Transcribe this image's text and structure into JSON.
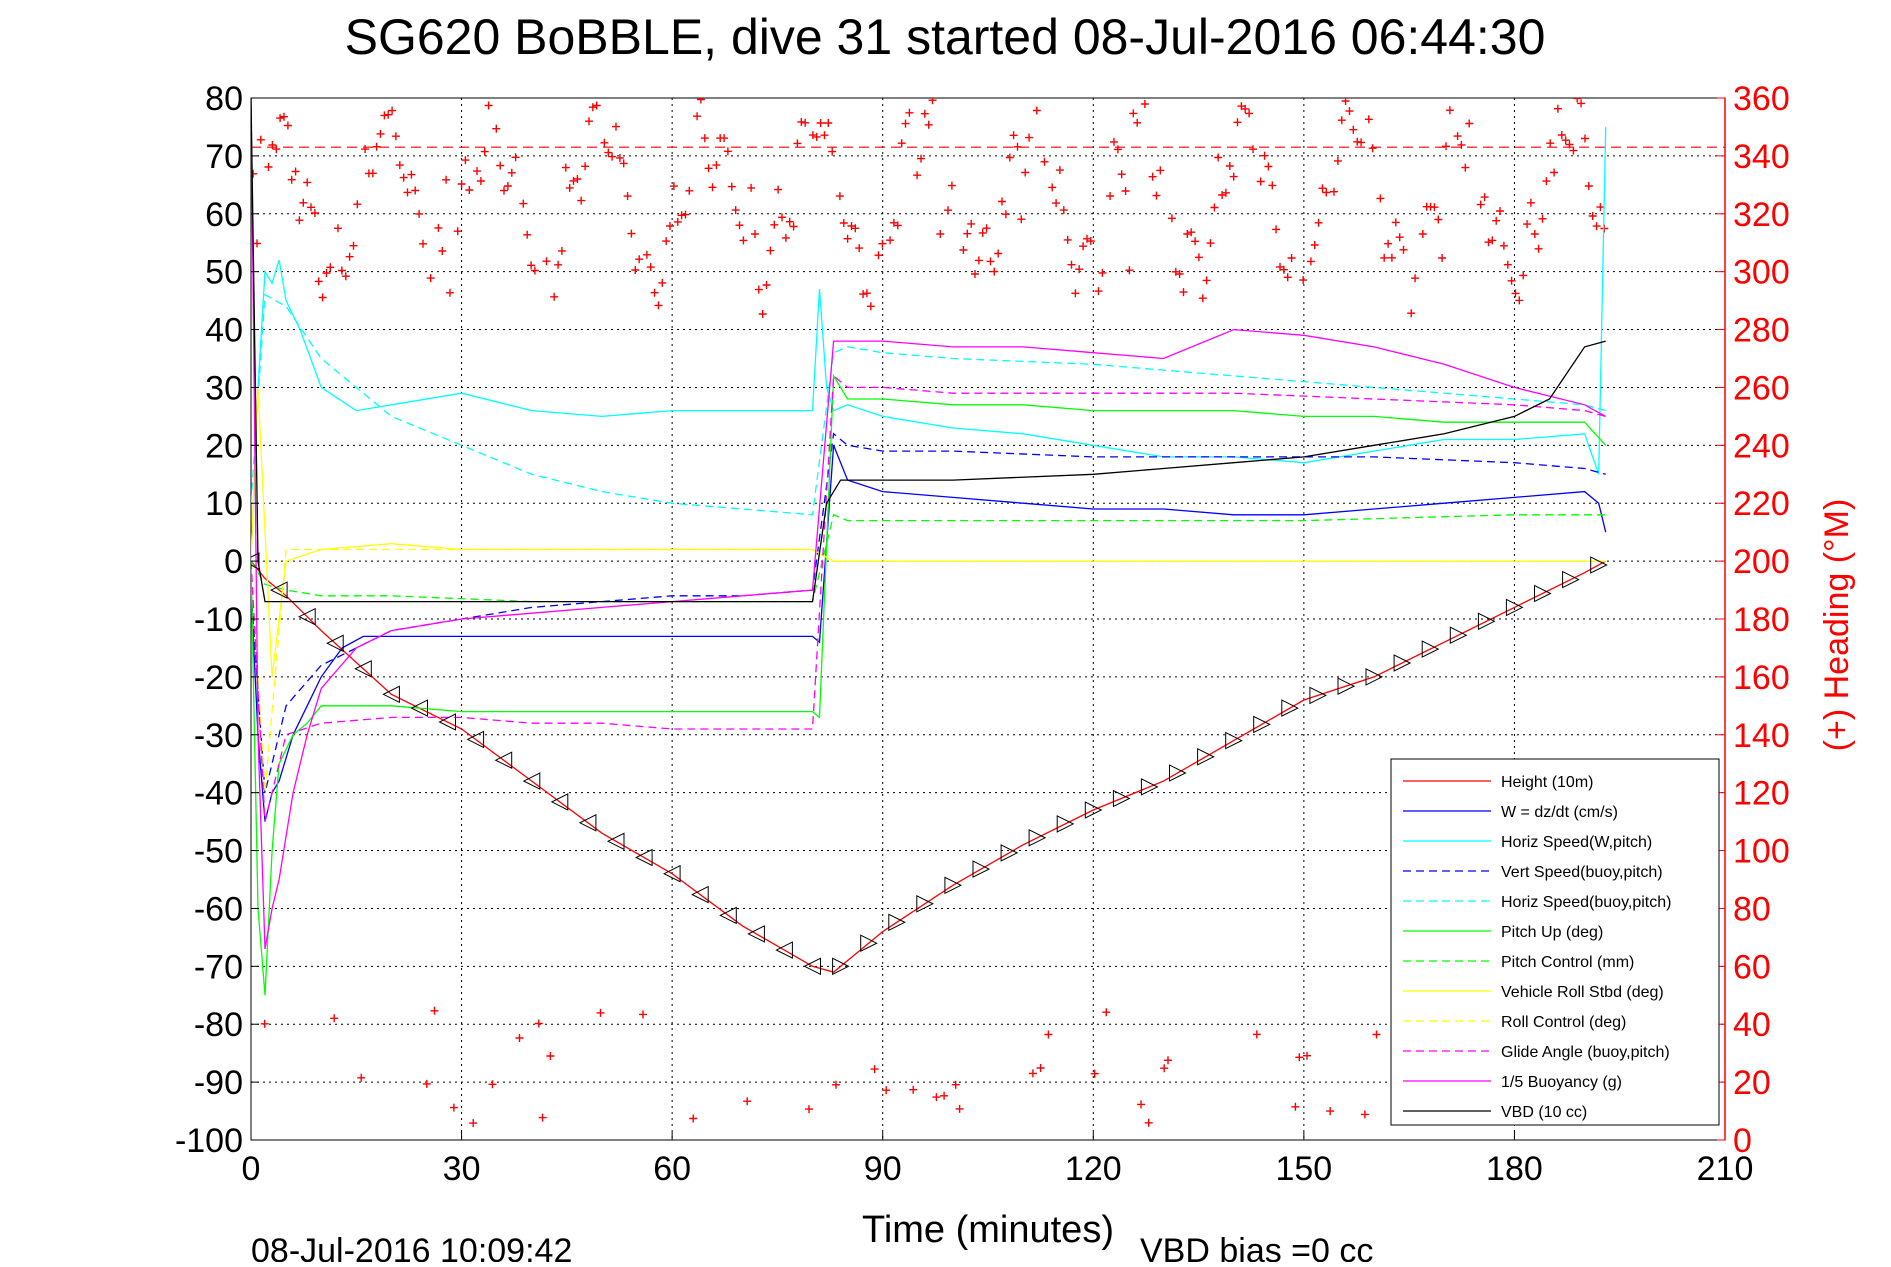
{
  "chart_data": {
    "type": "line",
    "title": "SG620 BoBBLE, dive 31 started 08-Jul-2016 06:44:30",
    "xlabel": "Time (minutes)",
    "ylabel": "",
    "y2label": "(+) Heading (°M)",
    "footer_left": "08-Jul-2016 10:09:42",
    "footer_right": "VBD bias =0 cc",
    "xlim": [
      0,
      210
    ],
    "ylim": [
      -100,
      80
    ],
    "y2lim": [
      0,
      360
    ],
    "xticks": [
      "0",
      "30",
      "60",
      "90",
      "120",
      "150",
      "180",
      "210"
    ],
    "yticks": [
      "80",
      "70",
      "60",
      "50",
      "40",
      "30",
      "20",
      "10",
      "0",
      "-10",
      "-20",
      "-30",
      "-40",
      "-50",
      "-60",
      "-70",
      "-80",
      "-90",
      "-100"
    ],
    "y2ticks": [
      "360",
      "340",
      "320",
      "300",
      "280",
      "260",
      "240",
      "220",
      "200",
      "180",
      "160",
      "140",
      "120",
      "100",
      "80",
      "60",
      "40",
      "20",
      "0"
    ],
    "grid": true,
    "legend_position": "bottom-right",
    "colors": {
      "height": "#ff0000",
      "w": "#0000ff",
      "horiz_speed_w": "#00ffff",
      "vert_speed_buoy": "#0000ff",
      "horiz_speed_buoy": "#00ffff",
      "pitch_up": "#00ff00",
      "pitch_control": "#00ff00",
      "roll": "#ffff00",
      "roll_control": "#ffff00",
      "glide_angle": "#ff00ff",
      "buoyancy": "#ff00ff",
      "vbd": "#000000",
      "heading": "#ff0000"
    },
    "series": [
      {
        "name": "Height (10m)",
        "style": "solid",
        "color": "#ff0000",
        "x": [
          0,
          2,
          5,
          10,
          20,
          30,
          40,
          50,
          60,
          70,
          80,
          83,
          90,
          100,
          110,
          120,
          130,
          140,
          150,
          160,
          170,
          180,
          190,
          193
        ],
        "y": [
          0,
          -3,
          -6,
          -12,
          -23,
          -29,
          -38,
          -47,
          -54,
          -63,
          -70,
          -71,
          -64,
          -56,
          -49,
          -43,
          -38,
          -31,
          -24,
          -20,
          -14,
          -8,
          -2,
          0
        ]
      },
      {
        "name": "W = dz/dt (cm/s)",
        "style": "solid",
        "color": "#0000ff",
        "x": [
          0,
          1,
          2,
          3,
          4,
          6,
          8,
          10,
          13,
          16,
          20,
          25,
          30,
          40,
          50,
          60,
          70,
          80,
          81,
          83,
          85,
          90,
          100,
          110,
          120,
          130,
          140,
          150,
          160,
          170,
          180,
          190,
          192,
          193
        ],
        "y": [
          -5,
          -30,
          -45,
          -40,
          -38,
          -30,
          -25,
          -20,
          -15,
          -13,
          -13,
          -13,
          -13,
          -13,
          -13,
          -13,
          -13,
          -13,
          -14,
          20,
          14,
          12,
          11,
          10,
          9,
          9,
          8,
          8,
          9,
          10,
          11,
          12,
          10,
          5
        ]
      },
      {
        "name": "Horiz Speed(W,pitch)",
        "style": "solid",
        "color": "#00ffff",
        "x": [
          0,
          1,
          2,
          3,
          4,
          5,
          7,
          10,
          15,
          20,
          30,
          40,
          50,
          60,
          70,
          80,
          81,
          82,
          83,
          85,
          90,
          100,
          110,
          120,
          130,
          140,
          150,
          160,
          170,
          180,
          190,
          192,
          193
        ],
        "y": [
          0,
          30,
          50,
          48,
          52,
          45,
          40,
          30,
          26,
          27,
          29,
          26,
          25,
          26,
          26,
          26,
          47,
          30,
          26,
          27,
          25,
          23,
          22,
          20,
          18,
          18,
          17,
          19,
          21,
          21,
          22,
          15,
          75
        ]
      },
      {
        "name": "Vert Speed(buoy,pitch)",
        "style": "dash",
        "color": "#0000ff",
        "x": [
          0,
          2,
          5,
          10,
          20,
          30,
          40,
          50,
          60,
          70,
          80,
          83,
          85,
          90,
          100,
          120,
          140,
          160,
          180,
          190,
          193
        ],
        "y": [
          -5,
          -40,
          -25,
          -18,
          -12,
          -10,
          -8,
          -7,
          -6,
          -6,
          -5,
          22,
          20,
          19,
          19,
          18,
          18,
          18,
          17,
          16,
          15
        ]
      },
      {
        "name": "Horiz Speed(buoy,pitch)",
        "style": "dash",
        "color": "#00ffff",
        "x": [
          0,
          2,
          5,
          10,
          15,
          20,
          30,
          40,
          50,
          60,
          70,
          80,
          83,
          85,
          90,
          100,
          120,
          140,
          160,
          180,
          190,
          193
        ],
        "y": [
          10,
          46,
          44,
          35,
          30,
          25,
          20,
          15,
          12,
          10,
          9,
          8,
          36,
          37,
          36,
          35,
          34,
          32,
          30,
          28,
          27,
          26
        ]
      },
      {
        "name": "Pitch Up (deg)",
        "style": "solid",
        "color": "#00ff00",
        "x": [
          0,
          1,
          2,
          3,
          4,
          6,
          8,
          10,
          15,
          20,
          30,
          40,
          50,
          60,
          70,
          80,
          81,
          83,
          85,
          90,
          100,
          110,
          120,
          130,
          140,
          150,
          160,
          170,
          180,
          190,
          193
        ],
        "y": [
          0,
          -60,
          -75,
          -50,
          -35,
          -30,
          -28,
          -25,
          -25,
          -25,
          -26,
          -26,
          -26,
          -26,
          -26,
          -26,
          -27,
          32,
          28,
          28,
          27,
          27,
          26,
          26,
          26,
          25,
          25,
          24,
          24,
          24,
          20
        ]
      },
      {
        "name": "Pitch Control (mm)",
        "style": "dash",
        "color": "#00ff00",
        "x": [
          0,
          2,
          5,
          10,
          20,
          40,
          60,
          80,
          83,
          85,
          90,
          120,
          150,
          180,
          193
        ],
        "y": [
          0,
          -4,
          -5,
          -6,
          -6,
          -7,
          -7,
          -7,
          8,
          7,
          7,
          7,
          7,
          8,
          8
        ]
      },
      {
        "name": "Vehicle Roll Stbd (deg)",
        "style": "solid",
        "color": "#ffff00",
        "x": [
          0,
          1,
          3,
          5,
          10,
          20,
          30,
          40,
          50,
          60,
          70,
          80,
          83,
          85,
          90,
          100,
          110,
          120,
          130,
          140,
          150,
          160,
          170,
          180,
          190,
          193
        ],
        "y": [
          0,
          30,
          -20,
          0,
          2,
          3,
          2,
          2,
          2,
          2,
          2,
          2,
          0,
          0,
          0,
          0,
          0,
          0,
          0,
          0,
          0,
          0,
          0,
          0,
          0,
          0
        ]
      },
      {
        "name": "Roll Control (deg)",
        "style": "dash",
        "color": "#ffff00",
        "x": [
          0,
          2,
          5,
          10,
          20,
          40,
          60,
          80,
          83,
          90,
          120,
          150,
          180,
          193
        ],
        "y": [
          0,
          -40,
          2,
          2,
          2,
          2,
          2,
          2,
          0,
          0,
          0,
          0,
          0,
          0
        ]
      },
      {
        "name": "Glide Angle (buoy,pitch)",
        "style": "dash",
        "color": "#ff00ff",
        "x": [
          0,
          2,
          5,
          10,
          20,
          30,
          40,
          50,
          60,
          70,
          80,
          83,
          85,
          90,
          100,
          120,
          140,
          160,
          180,
          190,
          193
        ],
        "y": [
          0,
          -45,
          -30,
          -28,
          -27,
          -27,
          -28,
          -28,
          -29,
          -29,
          -29,
          32,
          30,
          30,
          29,
          29,
          29,
          28,
          27,
          26,
          25
        ]
      },
      {
        "name": "1/5 Buoyancy (g)",
        "style": "solid",
        "color": "#ff00ff",
        "x": [
          0,
          1,
          2,
          3,
          4,
          6,
          8,
          10,
          15,
          20,
          30,
          40,
          50,
          60,
          70,
          80,
          83,
          85,
          90,
          100,
          110,
          120,
          130,
          140,
          150,
          160,
          170,
          180,
          190,
          193
        ],
        "y": [
          80,
          -30,
          -67,
          -60,
          -55,
          -40,
          -30,
          -22,
          -15,
          -12,
          -10,
          -9,
          -8,
          -7,
          -6,
          -5,
          38,
          38,
          38,
          37,
          37,
          36,
          35,
          40,
          39,
          37,
          34,
          30,
          27,
          25
        ]
      },
      {
        "name": "VBD (10 cc)",
        "style": "solid",
        "color": "#000000",
        "x": [
          0,
          1,
          2,
          3,
          20,
          40,
          60,
          80,
          82,
          84,
          90,
          100,
          120,
          130,
          140,
          150,
          160,
          170,
          180,
          185,
          190,
          193
        ],
        "y": [
          80,
          0,
          -7,
          -7,
          -7,
          -7,
          -7,
          -7,
          10,
          14,
          14,
          14,
          15,
          16,
          17,
          18,
          20,
          22,
          25,
          28,
          37,
          38
        ]
      }
    ],
    "heading_threshold": 343,
    "heading_threshold_color": "#ff0000"
  }
}
